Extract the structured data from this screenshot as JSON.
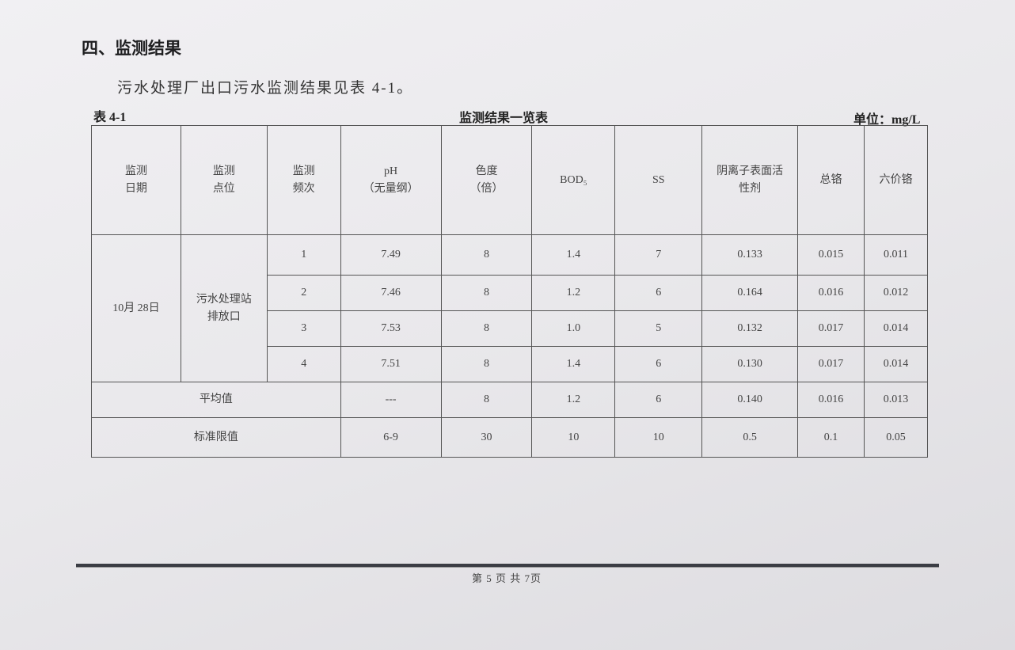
{
  "section_title": "四、监测结果",
  "intro": "污水处理厂出口污水监测结果见表 4-1。",
  "table": {
    "label": "表 4-1",
    "caption": "监测结果一览表",
    "unit": "单位：mg/L",
    "headers": [
      [
        "监测",
        "日期"
      ],
      [
        "监测",
        "点位"
      ],
      [
        "监测",
        "频次"
      ],
      [
        "pH",
        "（无量纲）"
      ],
      [
        "色度",
        "（倍）"
      ],
      [
        "BOD₅"
      ],
      [
        "SS"
      ],
      [
        "阴离子表面活",
        "性剂"
      ],
      [
        "总铬"
      ],
      [
        "六价铬"
      ]
    ],
    "date": "10月 28日",
    "location": [
      "污水处理站",
      "排放口"
    ],
    "rows": [
      [
        "1",
        "7.49",
        "8",
        "1.4",
        "7",
        "0.133",
        "0.015",
        "0.011"
      ],
      [
        "2",
        "7.46",
        "8",
        "1.2",
        "6",
        "0.164",
        "0.016",
        "0.012"
      ],
      [
        "3",
        "7.53",
        "8",
        "1.0",
        "5",
        "0.132",
        "0.017",
        "0.014"
      ],
      [
        "4",
        "7.51",
        "8",
        "1.4",
        "6",
        "0.130",
        "0.017",
        "0.014"
      ]
    ],
    "average": {
      "label": "平均值",
      "values": [
        "---",
        "8",
        "1.2",
        "6",
        "0.140",
        "0.016",
        "0.013"
      ]
    },
    "limit": {
      "label": "标准限值",
      "values": [
        "6-9",
        "30",
        "10",
        "10",
        "0.5",
        "0.1",
        "0.05"
      ]
    }
  },
  "footer": {
    "page": "第 5 页 共 7页"
  }
}
